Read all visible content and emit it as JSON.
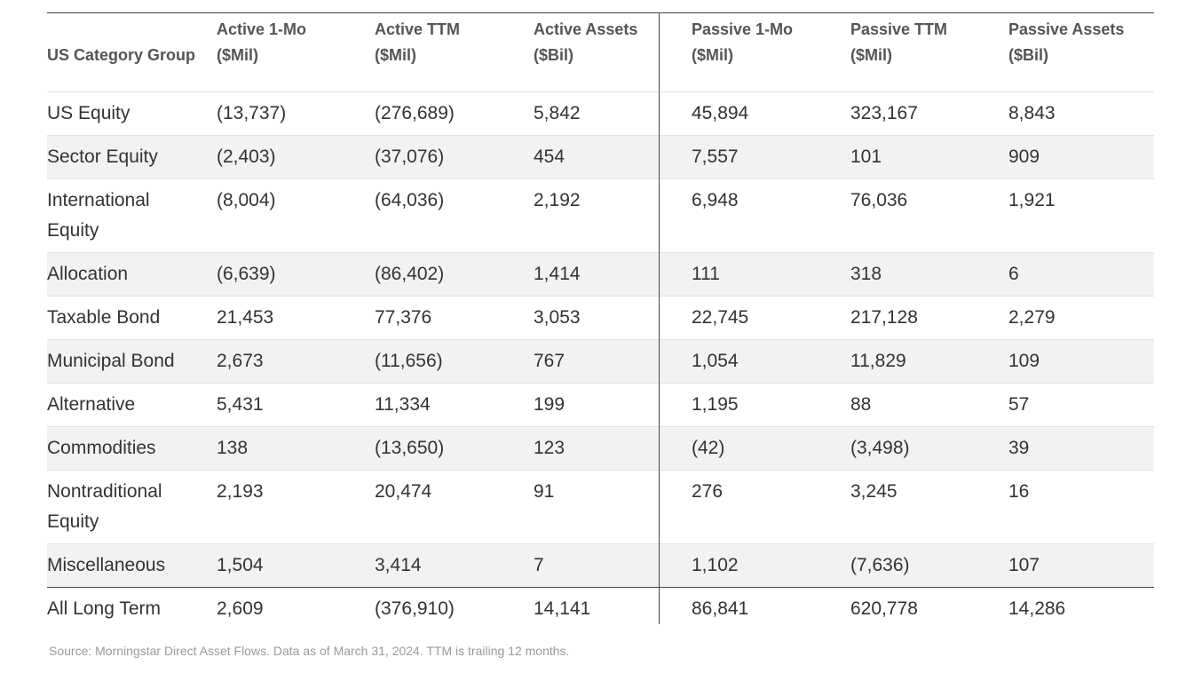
{
  "table": {
    "header": [
      [
        "US Category Group"
      ],
      [
        "Active 1-Mo",
        "($Mil)"
      ],
      [
        "Active TTM",
        "($Mil)"
      ],
      [
        "Active Assets",
        "($Bil)"
      ],
      [
        "Passive 1-Mo",
        "($Mil)"
      ],
      [
        "Passive TTM",
        "($Mil)"
      ],
      [
        "Passive Assets",
        "($Bil)"
      ]
    ],
    "rows": [
      [
        "US Equity",
        "(13,737)",
        "(276,689)",
        "5,842",
        "45,894",
        "323,167",
        "8,843"
      ],
      [
        "Sector Equity",
        "(2,403)",
        "(37,076)",
        "454",
        "7,557",
        "101",
        "909"
      ],
      [
        "International Equity",
        "(8,004)",
        "(64,036)",
        "2,192",
        "6,948",
        "76,036",
        "1,921"
      ],
      [
        "Allocation",
        "(6,639)",
        "(86,402)",
        "1,414",
        "111",
        "318",
        "6"
      ],
      [
        "Taxable Bond",
        "21,453",
        "77,376",
        "3,053",
        "22,745",
        "217,128",
        "2,279"
      ],
      [
        "Municipal Bond",
        "2,673",
        "(11,656)",
        "767",
        "1,054",
        "11,829",
        "109"
      ],
      [
        "Alternative",
        "5,431",
        "11,334",
        "199",
        "1,195",
        "88",
        "57"
      ],
      [
        "Commodities",
        "138",
        "(13,650)",
        "123",
        "(42)",
        "(3,498)",
        "39"
      ],
      [
        "Nontraditional Equity",
        "2,193",
        "20,474",
        "91",
        "276",
        "3,245",
        "16"
      ],
      [
        "Miscellaneous",
        "1,504",
        "3,414",
        "7",
        "1,102",
        "(7,636)",
        "107"
      ]
    ],
    "total": [
      "All Long Term",
      "2,609",
      "(376,910)",
      "14,141",
      "86,841",
      "620,778",
      "14,286"
    ]
  },
  "source": "Source: Morningstar Direct Asset Flows. Data as of March 31, 2024. TTM is trailing 12 months."
}
